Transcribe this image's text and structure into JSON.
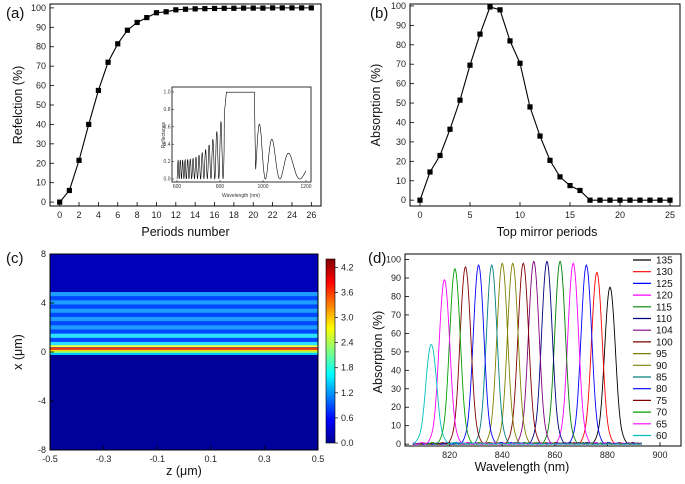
{
  "chart_data": [
    {
      "panel": "(a)",
      "type": "line",
      "xlabel": "Periods number",
      "ylabel": "Refelction (%)",
      "xlim": [
        -1,
        27
      ],
      "ylim": [
        -2,
        102
      ],
      "xticks": [
        0,
        2,
        4,
        6,
        8,
        10,
        12,
        14,
        16,
        18,
        20,
        22,
        24,
        26
      ],
      "yticks": [
        0,
        10,
        20,
        30,
        40,
        50,
        60,
        70,
        80,
        90,
        100
      ],
      "marker": "square",
      "x": [
        0,
        1,
        2,
        3,
        4,
        5,
        6,
        7,
        8,
        9,
        10,
        11,
        12,
        13,
        14,
        15,
        16,
        17,
        18,
        19,
        20,
        21,
        22,
        23,
        24,
        25,
        26
      ],
      "y": [
        0,
        6,
        21.5,
        40,
        57.5,
        72,
        81.5,
        88.5,
        92.5,
        95,
        97.5,
        98,
        99,
        99.3,
        99.5,
        99.6,
        99.7,
        99.8,
        99.8,
        99.9,
        99.9,
        99.9,
        100,
        100,
        100,
        100,
        100
      ],
      "inset": {
        "xlabel": "Wavelength (nm)",
        "ylabel": "Reflectance",
        "xlim": [
          600,
          1200
        ],
        "ylim": [
          0,
          1
        ],
        "xticks": [
          600,
          800,
          1000,
          1200
        ],
        "yticks": [
          0.0,
          0.2,
          0.4,
          0.6,
          0.8,
          1.0
        ],
        "stopband": [
          830,
          960
        ]
      }
    },
    {
      "panel": "(b)",
      "type": "line",
      "xlabel": "Top mirror periods",
      "ylabel": "Absorption (%)",
      "xlim": [
        -1,
        26
      ],
      "ylim": [
        -3,
        101
      ],
      "xticks": [
        0,
        5,
        10,
        15,
        20,
        25
      ],
      "yticks": [
        0,
        10,
        20,
        30,
        40,
        50,
        60,
        70,
        80,
        90,
        100
      ],
      "marker": "square",
      "x": [
        0,
        1,
        2,
        3,
        4,
        5,
        6,
        7,
        8,
        9,
        10,
        11,
        12,
        13,
        14,
        15,
        16,
        17,
        18,
        19,
        20,
        21,
        22,
        23,
        24,
        25
      ],
      "y": [
        0,
        14.5,
        23,
        36.5,
        51.5,
        69.5,
        85.5,
        99.5,
        98,
        82,
        70.5,
        48,
        33,
        20.5,
        12,
        7.5,
        5,
        0,
        0,
        0,
        0,
        0,
        0,
        0,
        0,
        0
      ]
    },
    {
      "panel": "(c)",
      "type": "heatmap",
      "xlabel": "z (μm)",
      "ylabel": "x (μm)",
      "xlim": [
        -0.5,
        0.5
      ],
      "ylim": [
        -8,
        8
      ],
      "xticks": [
        "-0.5",
        "-0.3",
        "-0.1",
        "0.1",
        "0.3",
        "0.5"
      ],
      "yticks": [
        "8",
        "4",
        "0",
        "-4",
        "-8"
      ],
      "colorbar": {
        "min": 0,
        "max": 4.4,
        "ticks": [
          "4.2",
          "3.6",
          "3.0",
          "2.4",
          "1.8",
          "1.2",
          "0.6",
          "0.0"
        ],
        "colors": [
          "#00008f",
          "#0000ff",
          "#0080ff",
          "#00ffff",
          "#80ff80",
          "#ffff00",
          "#ff8000",
          "#ff0000",
          "#800000"
        ]
      }
    },
    {
      "panel": "(d)",
      "type": "line",
      "xlabel": "Wavelength (nm)",
      "ylabel": "Absorption (%)",
      "xlim": [
        803,
        908
      ],
      "ylim": [
        -1,
        103
      ],
      "xticks": [
        820,
        840,
        860,
        880,
        900
      ],
      "yticks": [
        0,
        10,
        20,
        30,
        40,
        50,
        60,
        70,
        80,
        90,
        100
      ],
      "series": [
        {
          "name": "135",
          "color": "#000000",
          "peak_x": 881,
          "peak_y": 85
        },
        {
          "name": "130",
          "color": "#ff0000",
          "peak_x": 876,
          "peak_y": 93
        },
        {
          "name": "125",
          "color": "#0000ff",
          "peak_x": 872,
          "peak_y": 97
        },
        {
          "name": "120",
          "color": "#ff00ff",
          "peak_x": 867,
          "peak_y": 98
        },
        {
          "name": "115",
          "color": "#008000",
          "peak_x": 862,
          "peak_y": 99
        },
        {
          "name": "110",
          "color": "#000080",
          "peak_x": 857,
          "peak_y": 99
        },
        {
          "name": "104",
          "color": "#800080",
          "peak_x": 852,
          "peak_y": 99
        },
        {
          "name": "100",
          "color": "#800000",
          "peak_x": 848,
          "peak_y": 98
        },
        {
          "name": "95",
          "color": "#808000",
          "peak_x": 844,
          "peak_y": 98
        },
        {
          "name": "90",
          "color": "#808000",
          "peak_x": 840,
          "peak_y": 98
        },
        {
          "name": "85",
          "color": "#008080",
          "peak_x": 836,
          "peak_y": 97
        },
        {
          "name": "80",
          "color": "#0000ff",
          "peak_x": 831,
          "peak_y": 97
        },
        {
          "name": "75",
          "color": "#800000",
          "peak_x": 826,
          "peak_y": 96
        },
        {
          "name": "70",
          "color": "#00a000",
          "peak_x": 822,
          "peak_y": 95
        },
        {
          "name": "65",
          "color": "#ff00ff",
          "peak_x": 818,
          "peak_y": 89
        },
        {
          "name": "60",
          "color": "#00c0c0",
          "peak_x": 813,
          "peak_y": 54
        }
      ]
    }
  ]
}
